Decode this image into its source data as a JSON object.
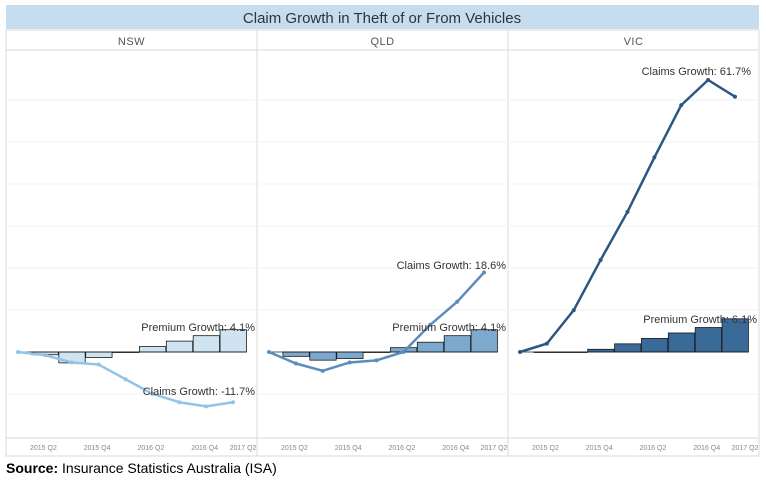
{
  "chart_data": {
    "type": "line",
    "title": "Claim Growth in Theft of or From Vehicles",
    "x": [
      "2015 Q1",
      "2015 Q2",
      "2015 Q3",
      "2015 Q4",
      "2016 Q1",
      "2016 Q2",
      "2016 Q3",
      "2016 Q4",
      "2017 Q1"
    ],
    "x_tick_labels": [
      "2015 Q2",
      "2015 Q4",
      "2016 Q2",
      "2016 Q4",
      "2017 Q2"
    ],
    "ylim": [
      -20,
      65
    ],
    "grid": true,
    "panels": [
      {
        "name": "NSW",
        "color": "#93c4e6",
        "bar_fill": "#cfe3f1",
        "claims": [
          0,
          -1.5,
          -5,
          -6,
          -13,
          -20,
          -24,
          -26,
          -24
        ],
        "premium": [
          0,
          -0.5,
          -2,
          -1,
          0,
          1,
          2,
          3,
          4.1
        ],
        "claims_label": "Claims Growth: -11.7%",
        "premium_label": "Premium Growth: 4.1%"
      },
      {
        "name": "QLD",
        "color": "#5a8dbb",
        "bar_fill": "#7ea9cf",
        "claims": [
          0,
          -5.5,
          -9,
          -5,
          -4,
          0,
          13,
          24,
          38
        ],
        "premium": [
          0,
          -0.8,
          -1.5,
          -1.2,
          0,
          0.8,
          1.8,
          3,
          4.1
        ],
        "claims_label": "Claims Growth: 18.6%",
        "premium_label": "Premium Growth: 4.1%"
      },
      {
        "name": "VIC",
        "color": "#2c5783",
        "bar_fill": "#3a6a98",
        "claims": [
          0,
          4,
          20,
          44,
          67,
          93,
          118,
          130,
          122
        ],
        "premium": [
          0,
          0,
          0,
          0.5,
          1.5,
          2.5,
          3.5,
          4.5,
          6.1
        ],
        "claims_label": "Claims Growth: 61.7%",
        "premium_label": "Premium Growth: 6.1%"
      }
    ]
  },
  "source": {
    "label": "Source:",
    "text": "Insurance Statistics Australia (ISA)"
  }
}
